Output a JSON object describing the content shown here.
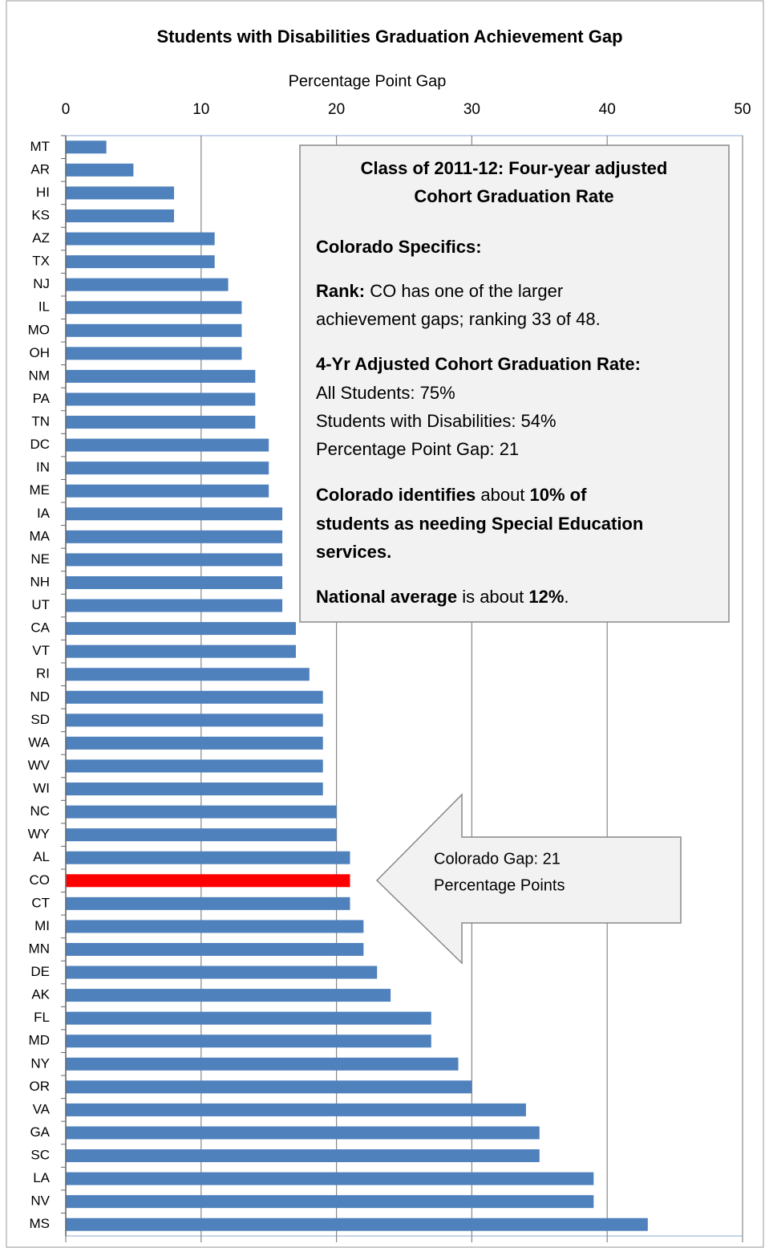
{
  "chart_data": {
    "type": "barh",
    "title": "Students with Disabilities Graduation Achievement Gap",
    "x_label": "Percentage Point Gap",
    "categories": [
      "MT",
      "AR",
      "HI",
      "KS",
      "AZ",
      "TX",
      "NJ",
      "IL",
      "MO",
      "OH",
      "NM",
      "PA",
      "TN",
      "DC",
      "IN",
      "ME",
      "IA",
      "MA",
      "NE",
      "NH",
      "UT",
      "CA",
      "VT",
      "RI",
      "ND",
      "SD",
      "WA",
      "WV",
      "WI",
      "NC",
      "WY",
      "AL",
      "CO",
      "CT",
      "MI",
      "MN",
      "DE",
      "AK",
      "FL",
      "MD",
      "NY",
      "OR",
      "VA",
      "GA",
      "SC",
      "LA",
      "NV",
      "MS"
    ],
    "values": [
      3,
      5,
      8,
      8,
      11,
      11,
      12,
      13,
      13,
      13,
      14,
      14,
      14,
      15,
      15,
      15,
      16,
      16,
      16,
      16,
      16,
      17,
      17,
      18,
      19,
      19,
      19,
      19,
      19,
      20,
      20,
      21,
      21,
      21,
      22,
      22,
      23,
      24,
      27,
      27,
      29,
      30,
      34,
      35,
      35,
      39,
      39,
      43
    ],
    "color": "#4f81bd",
    "highlight": {
      "category": "CO",
      "color": "#ff0000"
    },
    "xlim": [
      0,
      50
    ],
    "xticks": [
      0,
      10,
      20,
      30,
      40,
      50
    ],
    "grid": true,
    "annotation_box": [
      [
        {
          "text": "Class of 2011-12: Four-year adjusted",
          "bold": true
        }
      ],
      [
        {
          "text": "Cohort Graduation Rate",
          "bold": true
        }
      ],
      [
        {
          "text": "Colorado Specifics:",
          "bold": true
        }
      ],
      [
        {
          "text": "Rank:",
          "bold": true
        },
        {
          "text": " CO has one of the larger",
          "bold": false
        }
      ],
      [
        {
          "text": "achievement gaps; ranking 33 of 48.",
          "bold": false
        }
      ],
      [
        {
          "text": "4-Yr Adjusted Cohort Graduation Rate:",
          "bold": true
        }
      ],
      [
        {
          "text": "All Students: 75%",
          "bold": false
        }
      ],
      [
        {
          "text": "Students with Disabilities: 54%",
          "bold": false
        }
      ],
      [
        {
          "text": "Percentage Point Gap: 21",
          "bold": false
        }
      ],
      [
        {
          "text": "Colorado identifies",
          "bold": true
        },
        {
          "text": " about ",
          "bold": false
        },
        {
          "text": "10% of",
          "bold": true
        }
      ],
      [
        {
          "text": "students as needing Special Education",
          "bold": true
        }
      ],
      [
        {
          "text": "services.",
          "bold": true
        }
      ],
      [
        {
          "text": "National average",
          "bold": true
        },
        {
          "text": " is about ",
          "bold": false
        },
        {
          "text": "12%",
          "bold": true
        },
        {
          "text": ".",
          "bold": false
        }
      ]
    ],
    "callout": [
      "Colorado Gap: 21",
      "Percentage Points"
    ]
  }
}
